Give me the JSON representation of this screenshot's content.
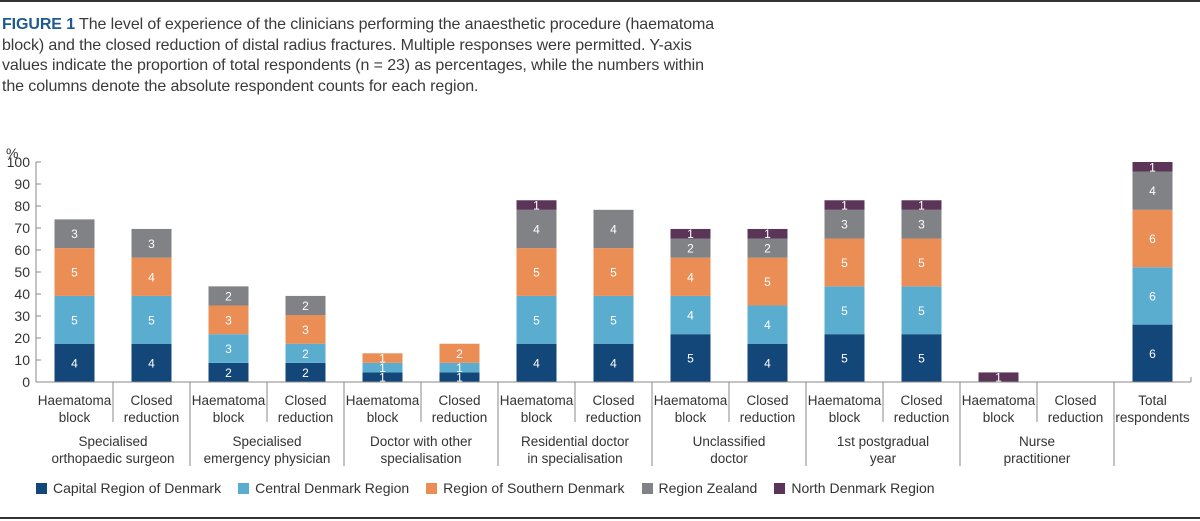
{
  "figure": {
    "label": "FIGURE 1",
    "caption": " The level of experience of the clinicians performing the anaesthetic procedure (haematoma block) and the closed reduction of distal radius fractures. Multiple responses were permitted. Y-axis values indicate the proportion of total respondents (n = 23) as percentages, while the numbers within the columns denote the absolute respondent counts for each region."
  },
  "chart_data": {
    "type": "bar",
    "stacked": true,
    "title": "",
    "ylabel": "%",
    "xlabel": "",
    "ylim": [
      0,
      100
    ],
    "yticks": [
      0,
      10,
      20,
      30,
      40,
      50,
      60,
      70,
      80,
      90,
      100
    ],
    "total_respondents": 23,
    "value_unit": "respondent count (bar height = count / 23 × 100 %)",
    "grid": false,
    "legend_position": "bottom",
    "groups": [
      {
        "label": "Specialised\northopaedic surgeon",
        "bars": [
          "Haematoma\nblock",
          "Closed\nreduction"
        ]
      },
      {
        "label": "Specialised\nemergency physician",
        "bars": [
          "Haematoma\nblock",
          "Closed\nreduction"
        ]
      },
      {
        "label": "Doctor with other\nspecialisation",
        "bars": [
          "Haematoma\nblock",
          "Closed\nreduction"
        ]
      },
      {
        "label": "Residential doctor\nin specialisation",
        "bars": [
          "Haematoma\nblock",
          "Closed\nreduction"
        ]
      },
      {
        "label": "Unclassified\ndoctor",
        "bars": [
          "Haematoma\nblock",
          "Closed\nreduction"
        ]
      },
      {
        "label": "1st postgradual\nyear",
        "bars": [
          "Haematoma\nblock",
          "Closed\nreduction"
        ]
      },
      {
        "label": "Nurse\npractitioner",
        "bars": [
          "Haematoma\nblock",
          "Closed\nreduction"
        ]
      },
      {
        "label": "",
        "bars": [
          "Total\nrespondents"
        ]
      }
    ],
    "categories": [
      "Specialised orthopaedic surgeon – Haematoma block",
      "Specialised orthopaedic surgeon – Closed reduction",
      "Specialised emergency physician – Haematoma block",
      "Specialised emergency physician – Closed reduction",
      "Doctor with other specialisation – Haematoma block",
      "Doctor with other specialisation – Closed reduction",
      "Residential doctor in specialisation – Haematoma block",
      "Residential doctor in specialisation – Closed reduction",
      "Unclassified doctor – Haematoma block",
      "Unclassified doctor – Closed reduction",
      "1st postgradual year – Haematoma block",
      "1st postgradual year – Closed reduction",
      "Nurse practitioner – Haematoma block",
      "Nurse practitioner – Closed reduction",
      "Total respondents"
    ],
    "series": [
      {
        "name": "Capital Region of Denmark",
        "color": "#134779",
        "values": [
          4,
          4,
          2,
          2,
          1,
          1,
          4,
          4,
          5,
          4,
          5,
          5,
          0,
          0,
          6
        ]
      },
      {
        "name": "Central Denmark Region",
        "color": "#5badd0",
        "values": [
          5,
          5,
          3,
          2,
          1,
          1,
          5,
          5,
          4,
          4,
          5,
          5,
          0,
          0,
          6
        ]
      },
      {
        "name": "Region of Southern Denmark",
        "color": "#eb8e56",
        "values": [
          5,
          4,
          3,
          3,
          1,
          2,
          5,
          5,
          4,
          5,
          5,
          5,
          0,
          0,
          6
        ]
      },
      {
        "name": "Region Zealand",
        "color": "#818286",
        "values": [
          3,
          3,
          2,
          2,
          0,
          0,
          4,
          4,
          2,
          2,
          3,
          3,
          0,
          0,
          4
        ]
      },
      {
        "name": "North Denmark Region",
        "color": "#5b3558",
        "values": [
          0,
          0,
          0,
          0,
          0,
          0,
          1,
          0,
          1,
          1,
          1,
          1,
          1,
          0,
          1
        ]
      }
    ]
  }
}
